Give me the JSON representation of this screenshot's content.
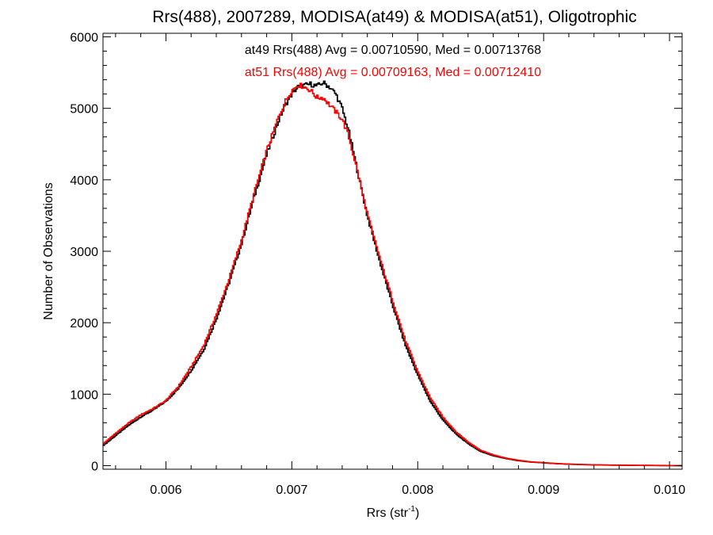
{
  "chart_data": {
    "type": "line",
    "step": true,
    "title": "Rrs(488), 2007289, MODISA(at49) & MODISA(at51), Oligotrophic",
    "xlabel": "Rrs (str",
    "xlabel_sup": "-1",
    "xlabel_close": ")",
    "ylabel": "Number of Observations",
    "xlim": [
      0.0055,
      0.0101
    ],
    "ylim": [
      -50,
      6050
    ],
    "xticks": [
      0.006,
      0.007,
      0.008,
      0.009,
      0.01
    ],
    "xtick_labels": [
      "0.006",
      "0.007",
      "0.008",
      "0.009",
      "0.010"
    ],
    "yticks": [
      0,
      1000,
      2000,
      3000,
      4000,
      5000,
      6000
    ],
    "ytick_labels": [
      "0",
      "1000",
      "2000",
      "3000",
      "4000",
      "5000",
      "6000"
    ],
    "annotations": [
      {
        "text": "at49 Rrs(488) Avg = 0.00710590, Med = 0.00713768",
        "color": "#000000"
      },
      {
        "text": "at51 Rrs(488) Avg = 0.00709163, Med = 0.00712410",
        "color": "#ff0000"
      }
    ],
    "series": [
      {
        "color": "#000000",
        "x": [
          0.0055,
          0.0056,
          0.0057,
          0.0058,
          0.0059,
          0.006,
          0.0061,
          0.0062,
          0.0063,
          0.0064,
          0.0065,
          0.0066,
          0.0067,
          0.0068,
          0.0069,
          0.00695,
          0.007,
          0.00705,
          0.0071,
          0.00715,
          0.0072,
          0.00725,
          0.0073,
          0.00735,
          0.0074,
          0.00745,
          0.0075,
          0.0076,
          0.0077,
          0.0078,
          0.0079,
          0.008,
          0.0081,
          0.0082,
          0.0083,
          0.0084,
          0.0085,
          0.0086,
          0.0087,
          0.0088,
          0.0089,
          0.009,
          0.0091,
          0.0092,
          0.0093,
          0.0094,
          0.0095,
          0.0096,
          0.0097,
          0.0098,
          0.0099,
          0.01,
          0.0101
        ],
        "y": [
          280,
          420,
          560,
          680,
          780,
          900,
          1080,
          1330,
          1620,
          2050,
          2550,
          3100,
          3750,
          4350,
          4850,
          5050,
          5200,
          5300,
          5320,
          5340,
          5310,
          5360,
          5300,
          5200,
          5000,
          4700,
          4300,
          3500,
          2850,
          2250,
          1700,
          1270,
          900,
          640,
          450,
          310,
          200,
          140,
          100,
          70,
          50,
          40,
          28,
          20,
          15,
          11,
          8,
          6,
          4,
          3,
          2,
          1,
          0
        ]
      },
      {
        "color": "#ff0000",
        "x": [
          0.0055,
          0.0056,
          0.0057,
          0.0058,
          0.0059,
          0.006,
          0.0061,
          0.0062,
          0.0063,
          0.0064,
          0.0065,
          0.0066,
          0.0067,
          0.0068,
          0.0069,
          0.00695,
          0.007,
          0.00705,
          0.0071,
          0.00715,
          0.0072,
          0.00725,
          0.0073,
          0.00735,
          0.0074,
          0.00745,
          0.0075,
          0.0076,
          0.0077,
          0.0078,
          0.0079,
          0.008,
          0.0081,
          0.0082,
          0.0083,
          0.0084,
          0.0085,
          0.0086,
          0.0087,
          0.0088,
          0.0089,
          0.009,
          0.0091,
          0.0092,
          0.0093,
          0.0094,
          0.0095,
          0.0096,
          0.0097,
          0.0098,
          0.0099,
          0.01,
          0.0101
        ],
        "y": [
          300,
          450,
          590,
          710,
          800,
          910,
          1110,
          1380,
          1680,
          2110,
          2600,
          3150,
          3800,
          4400,
          4900,
          5100,
          5250,
          5330,
          5300,
          5250,
          5150,
          5150,
          5050,
          4950,
          4850,
          4620,
          4280,
          3520,
          2900,
          2320,
          1760,
          1320,
          950,
          680,
          480,
          330,
          215,
          150,
          105,
          75,
          52,
          42,
          30,
          22,
          16,
          12,
          9,
          7,
          5,
          4,
          3,
          2,
          1
        ]
      }
    ]
  }
}
